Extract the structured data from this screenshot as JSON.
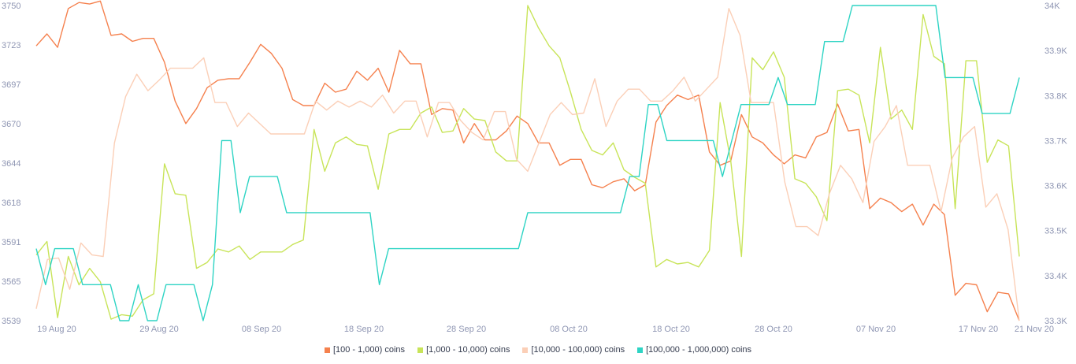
{
  "chart_data": {
    "type": "line",
    "x_ticks": [
      "19 Aug 20",
      "29 Aug 20",
      "08 Sep 20",
      "18 Sep 20",
      "28 Sep 20",
      "08 Oct 20",
      "18 Oct 20",
      "28 Oct 20",
      "07 Nov 20",
      "17 Nov 20",
      "21 Nov 20"
    ],
    "x_range": [
      "17 Aug 20",
      "21 Nov 20"
    ],
    "y_left": {
      "ticks": [
        "3539",
        "3565",
        "3591",
        "3618",
        "3644",
        "3670",
        "3697",
        "3723",
        "3750"
      ],
      "ylim": [
        3539,
        3750
      ]
    },
    "y_right": {
      "ticks": [
        "33.3K",
        "33.4K",
        "33.5K",
        "33.6K",
        "33.7K",
        "33.8K",
        "33.9K",
        "34K"
      ],
      "ylim": [
        33300,
        34000
      ]
    },
    "grid": false,
    "legend_position": "bottom",
    "series": [
      {
        "name": "[100 - 1,000) coins",
        "axis": "left",
        "color": "#f5814e",
        "values": [
          3723,
          3731,
          3722,
          3748,
          3752,
          3751,
          3753,
          3730,
          3731,
          3726,
          3728,
          3728,
          3712,
          3686,
          3671,
          3681,
          3695,
          3700,
          3701,
          3701,
          3712,
          3724,
          3718,
          3708,
          3687,
          3683,
          3683,
          3698,
          3692,
          3694,
          3706,
          3700,
          3708,
          3692,
          3720,
          3711,
          3711,
          3677,
          3681,
          3680,
          3658,
          3671,
          3660,
          3660,
          3666,
          3676,
          3671,
          3658,
          3658,
          3643,
          3647,
          3647,
          3630,
          3628,
          3632,
          3634,
          3626,
          3630,
          3672,
          3683,
          3690,
          3687,
          3690,
          3652,
          3643,
          3646,
          3677,
          3662,
          3658,
          3650,
          3644,
          3650,
          3648,
          3662,
          3665,
          3684,
          3666,
          3667,
          3614,
          3621,
          3618,
          3612,
          3617,
          3603,
          3617,
          3610,
          3556,
          3564,
          3563,
          3545,
          3558,
          3557,
          3539
        ]
      },
      {
        "name": "[1,000 - 10,000) coins",
        "axis": "left",
        "color": "#c8e459",
        "values": [
          3583,
          3592,
          3541,
          3582,
          3563,
          3574,
          3565,
          3540,
          3543,
          3542,
          3553,
          3557,
          3644,
          3624,
          3623,
          3574,
          3578,
          3587,
          3585,
          3589,
          3580,
          3585,
          3585,
          3585,
          3590,
          3593,
          3667,
          3639,
          3658,
          3662,
          3657,
          3656,
          3627,
          3664,
          3667,
          3667,
          3678,
          3682,
          3665,
          3666,
          3681,
          3674,
          3673,
          3652,
          3646,
          3646,
          3750,
          3735,
          3723,
          3715,
          3692,
          3667,
          3653,
          3650,
          3658,
          3640,
          3635,
          3631,
          3575,
          3580,
          3577,
          3578,
          3575,
          3586,
          3685,
          3646,
          3582,
          3715,
          3707,
          3719,
          3702,
          3634,
          3631,
          3622,
          3606,
          3693,
          3694,
          3690,
          3658,
          3722,
          3674,
          3680,
          3667,
          3744,
          3716,
          3711,
          3614,
          3713,
          3713,
          3645,
          3660,
          3656,
          3582
        ]
      },
      {
        "name": "[10,000 - 100,000) coins",
        "axis": "left",
        "color": "#fbcfb7",
        "values": [
          3547,
          3580,
          3581,
          3560,
          3591,
          3583,
          3582,
          3658,
          3689,
          3704,
          3693,
          3700,
          3708,
          3708,
          3708,
          3715,
          3685,
          3685,
          3669,
          3678,
          3671,
          3664,
          3664,
          3664,
          3664,
          3686,
          3680,
          3686,
          3682,
          3686,
          3682,
          3690,
          3678,
          3686,
          3686,
          3662,
          3685,
          3685,
          3673,
          3665,
          3660,
          3679,
          3679,
          3647,
          3639,
          3658,
          3677,
          3685,
          3677,
          3678,
          3701,
          3669,
          3686,
          3694,
          3694,
          3686,
          3686,
          3693,
          3702,
          3686,
          3694,
          3702,
          3748,
          3730,
          3685,
          3685,
          3685,
          3632,
          3602,
          3602,
          3596,
          3624,
          3643,
          3634,
          3618,
          3659,
          3669,
          3683,
          3643,
          3643,
          3643,
          3612,
          3648,
          3662,
          3669,
          3615,
          3624,
          3600,
          3539
        ]
      },
      {
        "name": "[100,000  - 1,000,000) coins",
        "axis": "right",
        "color": "#2ed4c4",
        "values": [
          33460,
          33380,
          33460,
          33460,
          33460,
          33380,
          33380,
          33380,
          33380,
          33300,
          33300,
          33380,
          33300,
          33300,
          33380,
          33380,
          33380,
          33380,
          33300,
          33380,
          33700,
          33700,
          33540,
          33620,
          33620,
          33620,
          33620,
          33540,
          33540,
          33540,
          33540,
          33540,
          33540,
          33540,
          33540,
          33540,
          33540,
          33380,
          33460,
          33460,
          33460,
          33460,
          33460,
          33460,
          33460,
          33460,
          33460,
          33460,
          33460,
          33460,
          33460,
          33460,
          33460,
          33540,
          33540,
          33540,
          33540,
          33540,
          33540,
          33540,
          33540,
          33540,
          33540,
          33540,
          33620,
          33620,
          33780,
          33780,
          33700,
          33700,
          33700,
          33700,
          33700,
          33700,
          33620,
          33700,
          33780,
          33780,
          33780,
          33780,
          33840,
          33780,
          33780,
          33780,
          33780,
          33920,
          33920,
          33920,
          34000,
          34000,
          34000,
          34000,
          34000,
          34000,
          34000,
          34000,
          34000,
          34000,
          33840,
          33840,
          33840,
          33840,
          33760,
          33760,
          33760,
          33760,
          33840
        ]
      }
    ]
  }
}
